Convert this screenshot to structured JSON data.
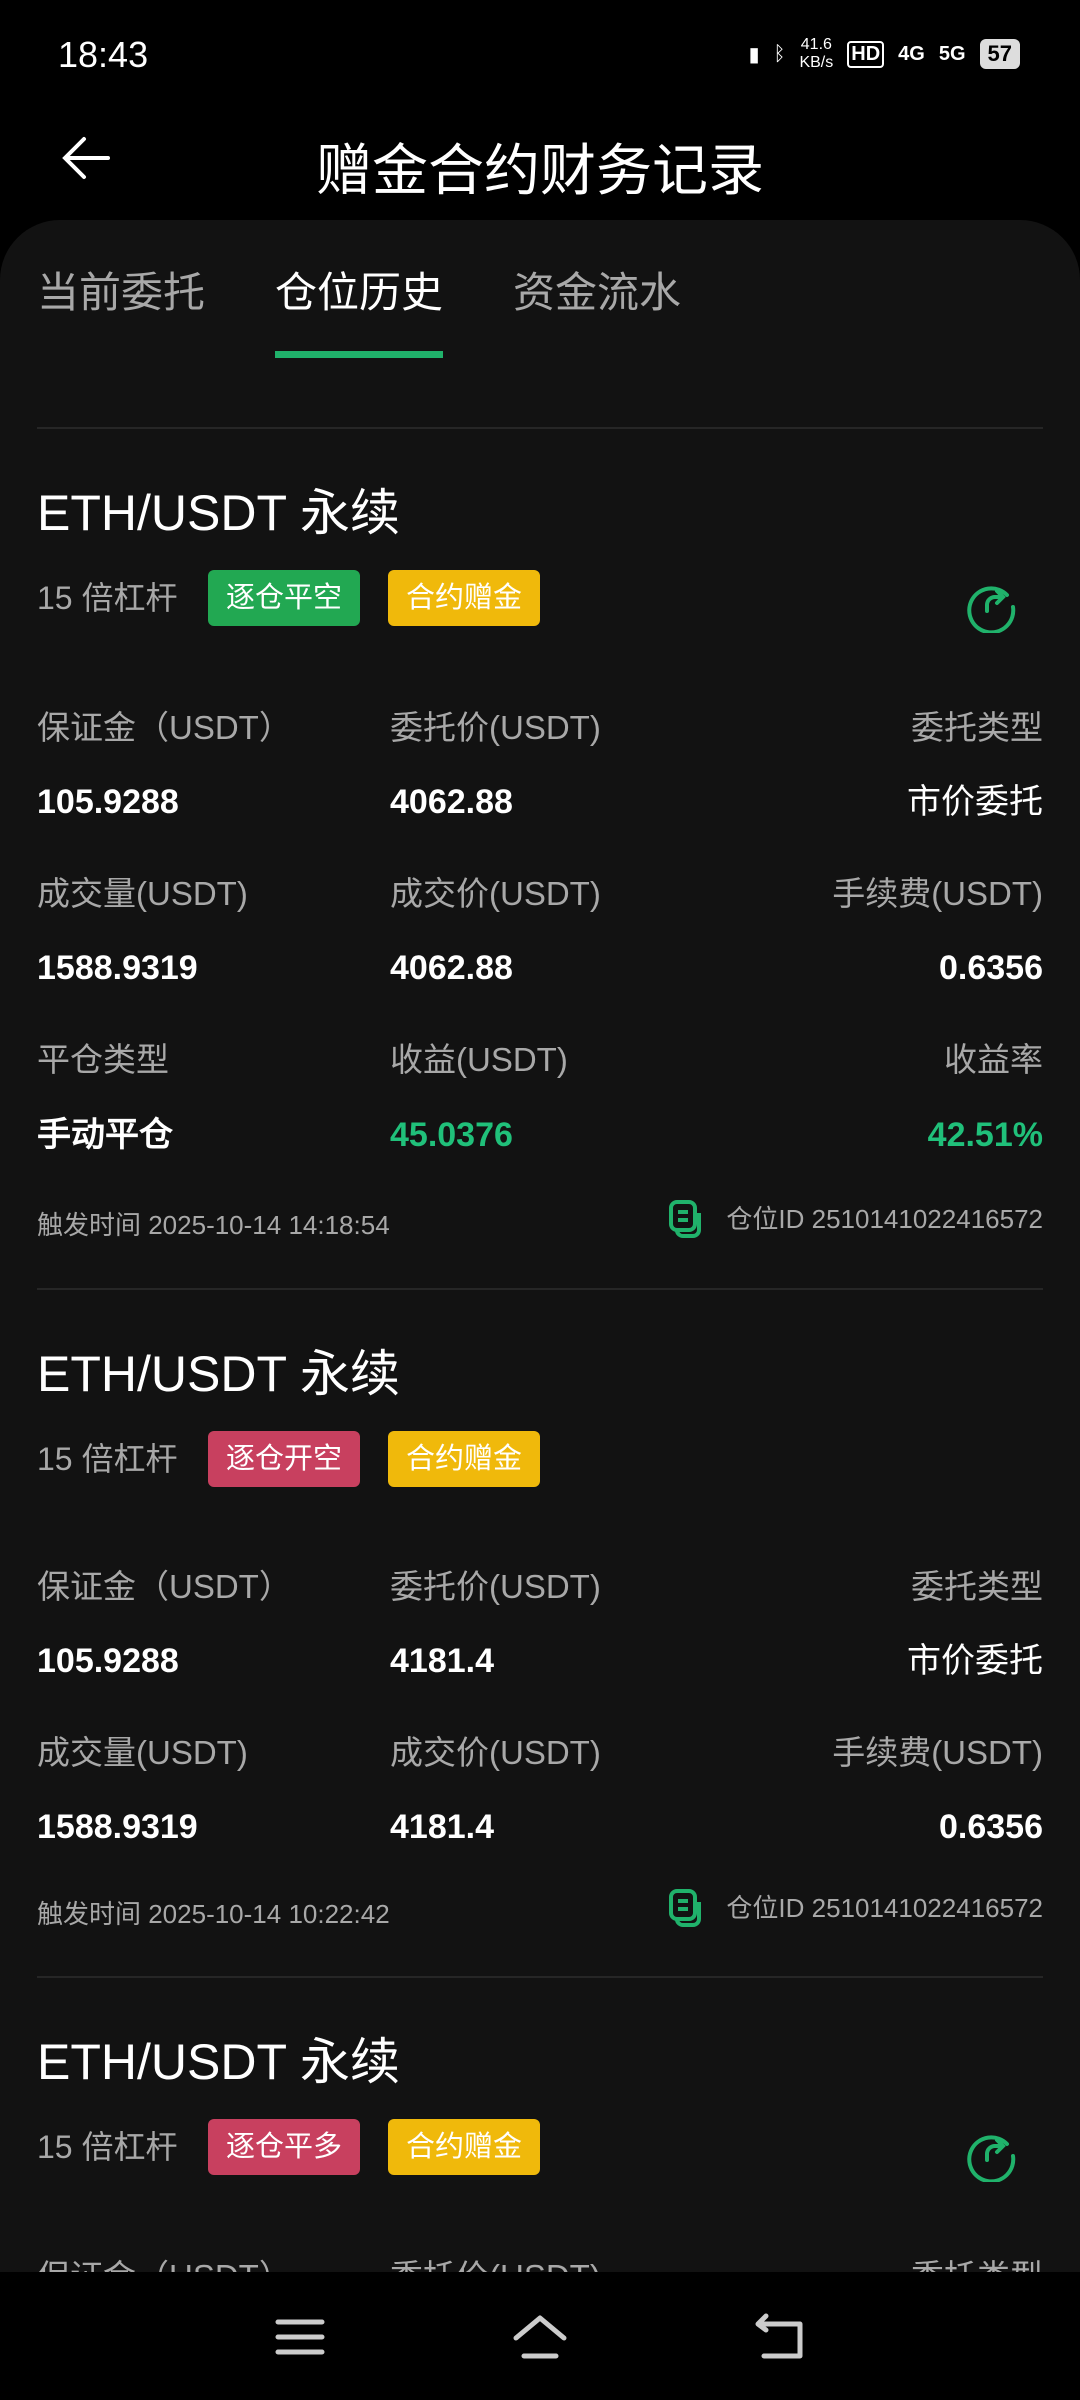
{
  "status_bar": {
    "time": "18:43",
    "net_speed_value": "41.6",
    "net_speed_unit": "KB/s",
    "hd": "HD",
    "sim": "4G",
    "sim2": "5G",
    "battery": "57"
  },
  "header": {
    "title": "赠金合约财务记录"
  },
  "tabs": [
    {
      "label": "当前委托",
      "active": false
    },
    {
      "label": "仓位历史",
      "active": true
    },
    {
      "label": "资金流水",
      "active": false
    }
  ],
  "colors": {
    "accent": "#20b26b",
    "profit": "#20c07a",
    "tag_green": "#22a852",
    "tag_red": "#c8405f",
    "tag_yellow": "#f0b90b"
  },
  "labels": {
    "margin": "保证金（USDT）",
    "order_price": "委托价(USDT)",
    "order_type": "委托类型",
    "volume": "成交量(USDT)",
    "fill_price": "成交价(USDT)",
    "fee": "手续费(USDT)",
    "close_type": "平仓类型",
    "pnl": "收益(USDT)",
    "pnl_rate": "收益率"
  },
  "records": [
    {
      "title": "ETH/USDT 永续",
      "leverage": "15 倍杠杆",
      "side_tag": "逐仓平空",
      "bonus_tag": "合约赠金",
      "margin": "105.9288",
      "order_price": "4062.88",
      "order_type": "市价委托",
      "volume": "1588.9319",
      "fill_price": "4062.88",
      "fee": "0.6356",
      "close_type": "手动平仓",
      "pnl": "45.0376",
      "pnl_rate": "42.51%",
      "trigger_time": "触发时间 2025-10-14 14:18:54",
      "position_id": "仓位ID 2510141022416572"
    },
    {
      "title": "ETH/USDT 永续",
      "leverage": "15 倍杠杆",
      "side_tag": "逐仓开空",
      "bonus_tag": "合约赠金",
      "margin": "105.9288",
      "order_price": "4181.4",
      "order_type": "市价委托",
      "volume": "1588.9319",
      "fill_price": "4181.4",
      "fee": "0.6356",
      "trigger_time": "触发时间 2025-10-14 10:22:42",
      "position_id": "仓位ID 2510141022416572"
    },
    {
      "title": "ETH/USDT 永续",
      "leverage": "15 倍杠杆",
      "side_tag": "逐仓平多",
      "bonus_tag": "合约赠金"
    }
  ]
}
